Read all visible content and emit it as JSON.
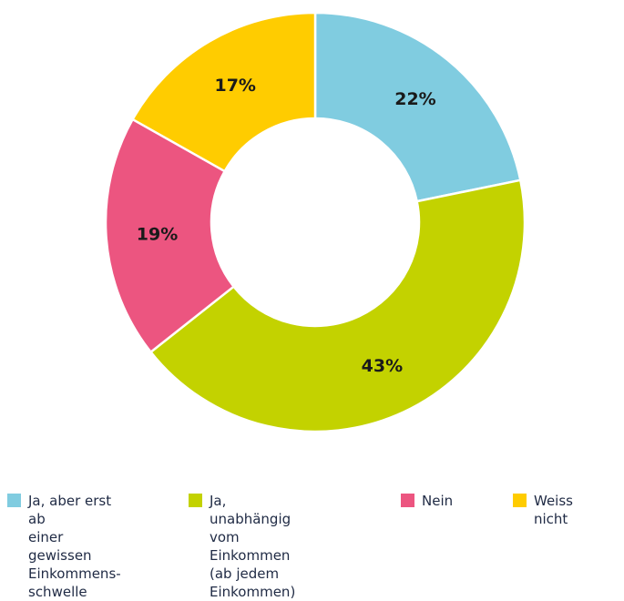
{
  "chart_data": {
    "type": "pie",
    "donut": true,
    "categories": [
      "Ja, aber erst ab\neiner gewissen\nEinkommens-\nschwelle",
      "Ja, unabhängig vom\nEinkommen\n(ab jedem Einkommen)",
      "Nein",
      "Weiss nicht"
    ],
    "values": [
      22,
      43,
      19,
      17
    ],
    "data_labels": [
      "22%",
      "43%",
      "19%",
      "17%"
    ],
    "colors": [
      "#80cce0",
      "#c3d200",
      "#ec5580",
      "#ffcc00"
    ],
    "title": "",
    "legend_placement": "bottom"
  },
  "legend": {
    "items": [
      {
        "label": "Ja, aber erst ab\neiner gewissen\nEinkommens-\nschwelle",
        "color": "#80cce0"
      },
      {
        "label": "Ja, unabhängig vom\nEinkommen\n(ab jedem Einkommen)",
        "color": "#c3d200"
      },
      {
        "label": "Nein",
        "color": "#ec5580"
      },
      {
        "label": "Weiss nicht",
        "color": "#ffcc00"
      }
    ]
  }
}
